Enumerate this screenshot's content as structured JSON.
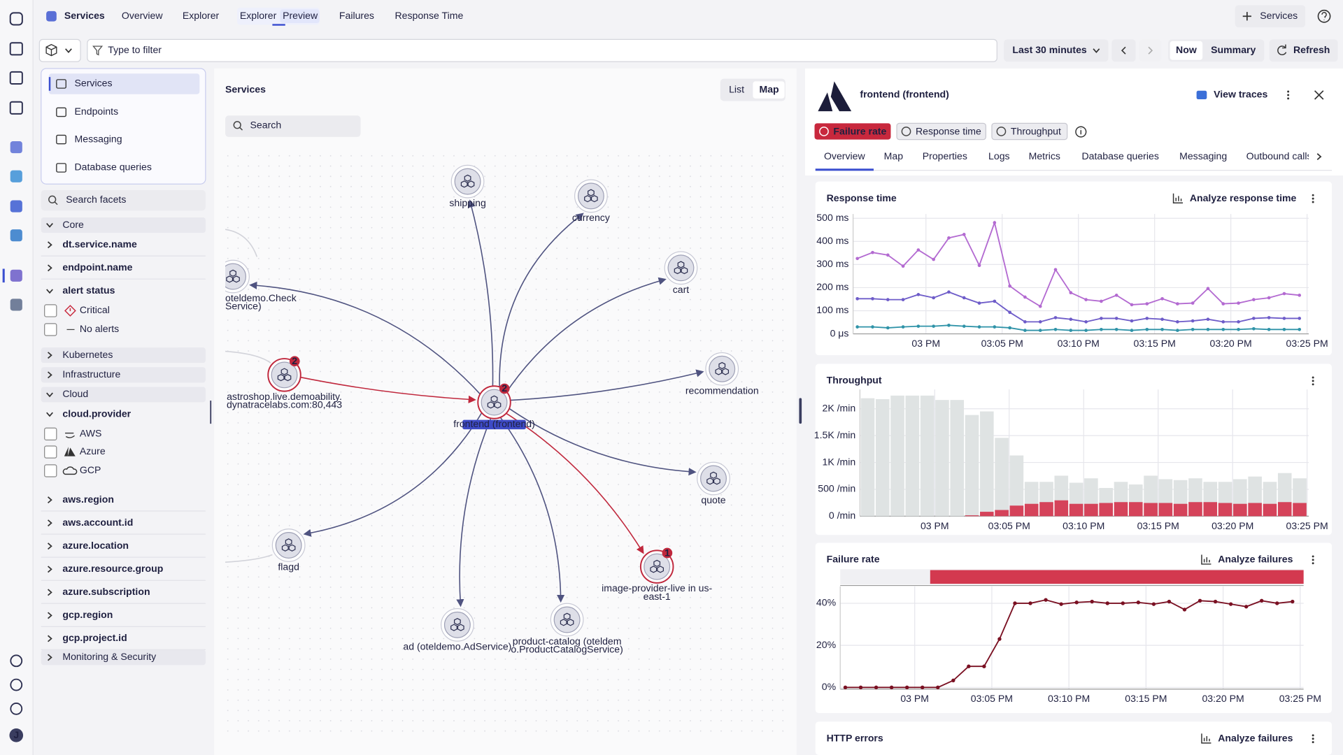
{
  "rail": {
    "avatar": "J"
  },
  "topbar": {
    "app": "Services",
    "tabs": [
      {
        "label": "Overview"
      },
      {
        "label": "Explorer"
      },
      {
        "label": "Explorer",
        "badge": "Preview"
      },
      {
        "label": "Failures"
      },
      {
        "label": "Response Time"
      }
    ],
    "add_button": "Services"
  },
  "toolbar": {
    "filter_placeholder": "Type to filter",
    "timeframe": "Last 30 minutes",
    "now": "Now",
    "summary": "Summary",
    "refresh": "Refresh"
  },
  "sidebar": {
    "views": [
      "Services",
      "Endpoints",
      "Messaging",
      "Database queries"
    ],
    "selected_view": 0,
    "search_placeholder": "Search facets",
    "facets": [
      {
        "label": "Core",
        "kind": "group-open"
      },
      {
        "label": "dt.service.name",
        "kind": "field"
      },
      {
        "label": "endpoint.name",
        "kind": "field"
      },
      {
        "label": "alert status",
        "kind": "field-open"
      },
      {
        "label": "Critical",
        "kind": "option",
        "icon": "critical"
      },
      {
        "label": "No alerts",
        "kind": "option",
        "icon": "dash"
      },
      {
        "label": "Kubernetes",
        "kind": "group"
      },
      {
        "label": "Infrastructure",
        "kind": "group"
      },
      {
        "label": "Cloud",
        "kind": "group-open"
      },
      {
        "label": "cloud.provider",
        "kind": "field-open"
      },
      {
        "label": "AWS",
        "kind": "option",
        "icon": "aws"
      },
      {
        "label": "Azure",
        "kind": "option",
        "icon": "azure"
      },
      {
        "label": "GCP",
        "kind": "option",
        "icon": "gcp"
      },
      {
        "label": "aws.region",
        "kind": "field"
      },
      {
        "label": "aws.account.id",
        "kind": "field"
      },
      {
        "label": "azure.location",
        "kind": "field"
      },
      {
        "label": "azure.resource.group",
        "kind": "field"
      },
      {
        "label": "azure.subscription",
        "kind": "field"
      },
      {
        "label": "gcp.region",
        "kind": "field"
      },
      {
        "label": "gcp.project.id",
        "kind": "field"
      },
      {
        "label": "Monitoring & Security",
        "kind": "group"
      }
    ]
  },
  "map": {
    "title": "Services",
    "view_toggle": [
      "List",
      "Map"
    ],
    "selected": 1,
    "search_placeholder": "Search",
    "nodes": [
      {
        "label": [
          "shipping"
        ]
      },
      {
        "label": [
          "currency"
        ]
      },
      {
        "label": [
          "cart"
        ]
      },
      {
        "label": [
          "recommendation"
        ]
      },
      {
        "label": [
          "quote"
        ]
      },
      {
        "label": [
          "image-provider-live in us-",
          "east-1"
        ],
        "badge": 1
      },
      {
        "label": [
          "product-catalog (oteldem",
          "o.ProductCatalogService)"
        ]
      },
      {
        "label": [
          "ad (oteldemo.AdService)"
        ]
      },
      {
        "label": [
          "flagd"
        ]
      },
      {
        "label": [
          "astroshop.live.demoability.",
          "dynatracelabs.com:80,443"
        ],
        "badge": 2
      },
      {
        "label": [
          "oteldemo.Check",
          "Service)"
        ]
      },
      {
        "label": [
          "frontend (frontend)"
        ],
        "badge": 2,
        "focus": true
      }
    ],
    "edges": [
      {
        "from": 11,
        "to": 0
      },
      {
        "from": 11,
        "to": 1
      },
      {
        "from": 11,
        "to": 2
      },
      {
        "from": 11,
        "to": 3
      },
      {
        "from": 11,
        "to": 4
      },
      {
        "from": 11,
        "to": 5,
        "failing": true
      },
      {
        "from": 11,
        "to": 6
      },
      {
        "from": 11,
        "to": 7
      },
      {
        "from": 11,
        "to": 8
      },
      {
        "from": 11,
        "to": 10
      },
      {
        "from": 9,
        "to": 11,
        "failing": true
      }
    ]
  },
  "details": {
    "title": "frontend (frontend)",
    "view_traces": "View traces",
    "chips": [
      {
        "label": "Failure rate",
        "active": true
      },
      {
        "label": "Response time"
      },
      {
        "label": "Throughput"
      }
    ],
    "tabs": [
      "Overview",
      "Map",
      "Properties",
      "Logs",
      "Metrics",
      "Database queries",
      "Messaging",
      "Outbound calls"
    ],
    "selected_tab": 0,
    "cards": [
      {
        "title": "Response time",
        "action": "Analyze response time",
        "chart": {
          "type": "line",
          "grid": true,
          "x": [
            -4.5,
            -3.5,
            -2.5,
            -1.5,
            -0.5,
            0.5,
            1.5,
            2.5,
            3.5,
            4.5,
            5.5,
            6.5,
            7.5,
            8.5,
            9.5,
            10.5,
            11.5,
            12.5,
            13.5,
            14.5,
            15.5,
            16.5,
            17.5,
            18.5,
            19.5,
            20.5,
            21.5,
            22.5,
            23.5,
            24.5
          ],
          "xlim": [
            -4.78,
            25.11
          ],
          "xticks": [
            {
              "value": 0,
              "label": "03 PM"
            },
            {
              "value": 5,
              "label": "03:05 PM"
            },
            {
              "value": 10,
              "label": "03:10 PM"
            },
            {
              "value": 15,
              "label": "03:15 PM"
            },
            {
              "value": 20,
              "label": "03:20 PM"
            },
            {
              "value": 25,
              "label": "03:25 PM"
            }
          ],
          "ylim": [
            0,
            500
          ],
          "yticks": [
            {
              "value": 0,
              "label": "0 μs"
            },
            {
              "value": 100,
              "label": "100 ms"
            },
            {
              "value": 200,
              "label": "200 ms"
            },
            {
              "value": 300,
              "label": "300 ms"
            },
            {
              "value": 400,
              "label": "400 ms"
            },
            {
              "value": 500,
              "label": "500 ms"
            }
          ],
          "series": [
            {
              "color": "#b36ad1",
              "values": [
                326,
                352,
                341,
                293,
                363,
                322,
                415,
                430,
                296,
                481,
                207,
                159,
                119,
                278,
                178,
                148,
                141,
                167,
                126,
                130,
                152,
                130,
                133,
                196,
                130,
                133,
                148,
                156,
                174,
                167
              ]
            },
            {
              "color": "#6e5cc9",
              "values": [
                152,
                152,
                148,
                148,
                170,
                156,
                181,
                156,
                133,
                141,
                93,
                52,
                52,
                70,
                63,
                52,
                67,
                67,
                56,
                67,
                63,
                52,
                56,
                63,
                52,
                52,
                67,
                70,
                67,
                67
              ]
            },
            {
              "color": "#2f93a8",
              "values": [
                30,
                30,
                26,
                30,
                33,
                33,
                37,
                33,
                30,
                30,
                26,
                15,
                15,
                19,
                15,
                15,
                19,
                19,
                15,
                19,
                19,
                15,
                19,
                19,
                19,
                19,
                22,
                19,
                19,
                19
              ]
            }
          ]
        }
      },
      {
        "title": "Throughput",
        "chart": {
          "type": "bar",
          "grid": true,
          "x": [
            -4.5,
            -3.5,
            -2.5,
            -1.5,
            -0.5,
            0.5,
            1.5,
            2.5,
            3.5,
            4.5,
            5.5,
            6.5,
            7.5,
            8.5,
            9.5,
            10.5,
            11.5,
            12.5,
            13.5,
            14.5,
            15.5,
            16.5,
            17.5,
            18.5,
            19.5,
            20.5,
            21.5,
            22.5,
            23.5,
            24.5
          ],
          "xlim": [
            -5.02,
            25.11
          ],
          "xticks": [
            {
              "value": 0,
              "label": "03 PM"
            },
            {
              "value": 5,
              "label": "03:05 PM"
            },
            {
              "value": 10,
              "label": "03:10 PM"
            },
            {
              "value": 15,
              "label": "03:15 PM"
            },
            {
              "value": 20,
              "label": "03:20 PM"
            },
            {
              "value": 25,
              "label": "03:25 PM"
            }
          ],
          "ylim": [
            0,
            2280
          ],
          "yticks": [
            {
              "value": 0,
              "label": "0 /min"
            },
            {
              "value": 500,
              "label": "500 /min"
            },
            {
              "value": 1000,
              "label": "1K /min"
            },
            {
              "value": 1500,
              "label": "1.5K /min"
            },
            {
              "value": 2000,
              "label": "2K /min"
            }
          ],
          "series": [
            {
              "color": "#dfe3e3",
              "values": [
                2197,
                2180,
                2246,
                2246,
                2246,
                2164,
                2164,
                1885,
                1951,
                1459,
                1131,
                639,
                639,
                754,
                623,
                705,
                525,
                639,
                590,
                754,
                689,
                672,
                705,
                639,
                639,
                689,
                738,
                639,
                803,
                705
              ]
            },
            {
              "color": "#d5435a",
              "values": [
                0,
                0,
                0,
                0,
                0,
                0,
                0,
                16,
                82,
                115,
                197,
                230,
                262,
                295,
                230,
                230,
                246,
                262,
                262,
                246,
                246,
                230,
                262,
                262,
                246,
                230,
                246,
                230,
                262,
                246
              ]
            }
          ]
        }
      },
      {
        "title": "Failure rate",
        "action": "Analyze failures",
        "chart": {
          "type": "line",
          "grid": true,
          "x": [
            -4.5,
            -3.5,
            -2.5,
            -1.5,
            -0.5,
            0.5,
            1.5,
            2.5,
            3.5,
            4.5,
            5.5,
            6.5,
            7.5,
            8.5,
            9.5,
            10.5,
            11.5,
            12.5,
            13.5,
            14.5,
            15.5,
            16.5,
            17.5,
            18.5,
            19.5,
            20.5,
            21.5,
            22.5,
            23.5,
            24.5
          ],
          "xlim": [
            -4.83,
            25.22
          ],
          "xticks": [
            {
              "value": 0,
              "label": "03 PM"
            },
            {
              "value": 5,
              "label": "03:05 PM"
            },
            {
              "value": 10,
              "label": "03:10 PM"
            },
            {
              "value": 15,
              "label": "03:15 PM"
            },
            {
              "value": 20,
              "label": "03:20 PM"
            },
            {
              "value": 25,
              "label": "03:25 PM"
            }
          ],
          "ylim": [
            -0.8,
            46
          ],
          "yticks": [
            {
              "value": 0,
              "label": "0%"
            },
            {
              "value": 20,
              "label": "20%"
            },
            {
              "value": 40,
              "label": "40%"
            }
          ],
          "series": [
            {
              "color": "#7a1022",
              "values": [
                0,
                0,
                0,
                0,
                0,
                0,
                0,
                3.3,
                10,
                10,
                23,
                40,
                40,
                41.6,
                39.6,
                40.4,
                40.8,
                40,
                40,
                40.4,
                39.6,
                40.8,
                37,
                41.2,
                40.8,
                39.6,
                38.4,
                41.2,
                40,
                40.8
              ]
            }
          ]
        }
      },
      {
        "title": "HTTP errors",
        "action": "Analyze failures"
      }
    ]
  }
}
